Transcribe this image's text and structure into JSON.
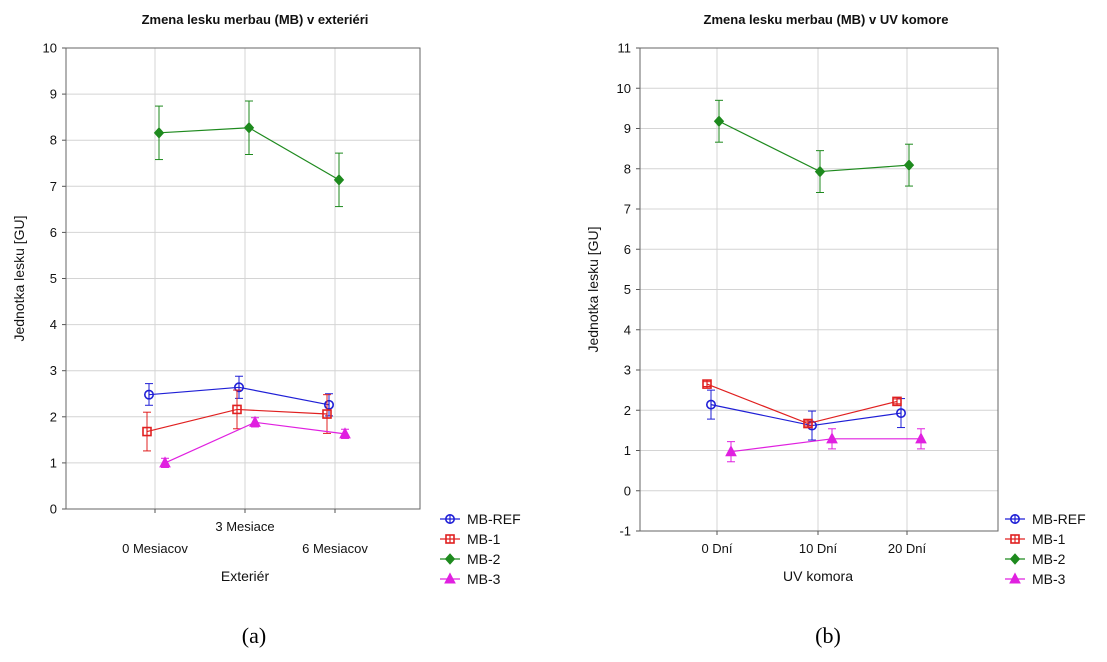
{
  "captions": [
    "(a)",
    "(b)"
  ],
  "series_colors": {
    "MB-REF": "#1f1fd6",
    "MB-1": "#e02020",
    "MB-2": "#1e8a1e",
    "MB-3": "#e020e0"
  },
  "chart_data": [
    {
      "type": "line",
      "title": "Zmena lesku merbau (MB) v exteriéri",
      "xlabel": "Exteriér",
      "ylabel": "Jednotka lesku [GU]",
      "categories": [
        "0 Mesiacov",
        "3 Mesiace",
        "6 Mesiacov"
      ],
      "ylim": [
        0,
        10
      ],
      "yticks": [
        0,
        1,
        2,
        3,
        4,
        5,
        6,
        7,
        8,
        9,
        10
      ],
      "grid": true,
      "legend": "bottom-right",
      "series": [
        {
          "name": "MB-REF",
          "marker": "circle",
          "values": [
            2.48,
            2.64,
            2.26
          ],
          "low": [
            2.25,
            2.4,
            2.02
          ],
          "high": [
            2.72,
            2.88,
            2.5
          ]
        },
        {
          "name": "MB-1",
          "marker": "square",
          "values": [
            1.68,
            2.16,
            2.06
          ],
          "low": [
            1.26,
            1.74,
            1.64
          ],
          "high": [
            2.1,
            2.58,
            2.48
          ]
        },
        {
          "name": "MB-2",
          "marker": "diamond",
          "values": [
            8.16,
            8.27,
            7.14
          ],
          "low": [
            7.58,
            7.69,
            6.56
          ],
          "high": [
            8.74,
            8.85,
            7.72
          ]
        },
        {
          "name": "MB-3",
          "marker": "triangle",
          "values": [
            1.0,
            1.88,
            1.63
          ],
          "low": [
            0.9,
            1.78,
            1.53
          ],
          "high": [
            1.1,
            1.98,
            1.73
          ]
        }
      ]
    },
    {
      "type": "line",
      "title": "Zmena lesku merbau (MB) v UV komore",
      "xlabel": "UV komora",
      "ylabel": "Jednotka lesku [GU]",
      "categories": [
        "0 Dní",
        "10 Dní",
        "20 Dní"
      ],
      "ylim": [
        -1,
        11
      ],
      "yticks": [
        -1,
        0,
        1,
        2,
        3,
        4,
        5,
        6,
        7,
        8,
        9,
        10,
        11
      ],
      "grid": true,
      "legend": "bottom-right",
      "series": [
        {
          "name": "MB-REF",
          "marker": "circle",
          "values": [
            2.14,
            1.62,
            1.93
          ],
          "low": [
            1.78,
            1.26,
            1.57
          ],
          "high": [
            2.5,
            1.98,
            2.29
          ]
        },
        {
          "name": "MB-1",
          "marker": "square",
          "values": [
            2.65,
            1.67,
            2.22
          ],
          "low": [
            2.59,
            1.61,
            2.16
          ],
          "high": [
            2.71,
            1.73,
            2.28
          ]
        },
        {
          "name": "MB-2",
          "marker": "diamond",
          "values": [
            9.18,
            7.93,
            8.09
          ],
          "low": [
            8.66,
            7.41,
            7.57
          ],
          "high": [
            9.7,
            8.45,
            8.61
          ]
        },
        {
          "name": "MB-3",
          "marker": "triangle",
          "values": [
            0.97,
            1.29,
            1.29
          ],
          "low": [
            0.72,
            1.04,
            1.04
          ],
          "high": [
            1.22,
            1.54,
            1.54
          ]
        }
      ]
    }
  ]
}
